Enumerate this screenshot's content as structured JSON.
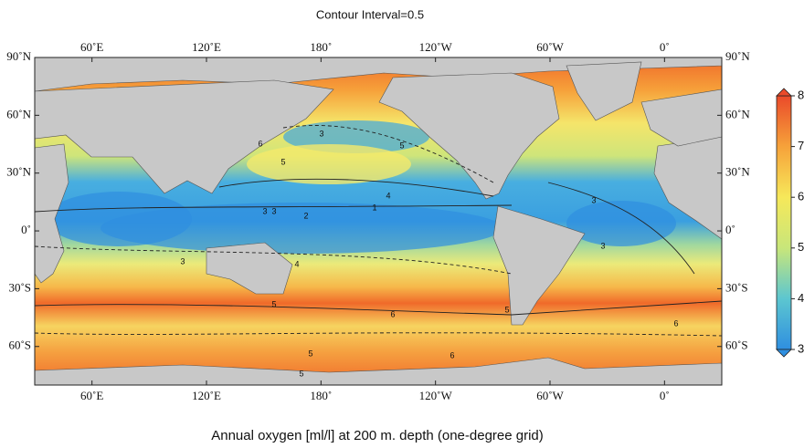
{
  "title": "Contour Interval=0.5",
  "caption": "Annual oxygen [ml/l] at 200 m. depth (one-degree grid)",
  "map": {
    "xlim": [
      30,
      390
    ],
    "ylim": [
      -80,
      90
    ],
    "lon_ticks": [
      {
        "value": 60,
        "label": "60˚E"
      },
      {
        "value": 120,
        "label": "120˚E"
      },
      {
        "value": 180,
        "label": "180˚"
      },
      {
        "value": 240,
        "label": "120˚W"
      },
      {
        "value": 300,
        "label": "60˚W"
      },
      {
        "value": 360,
        "label": "0˚"
      }
    ],
    "lat_ticks": [
      {
        "value": 90,
        "label": "90˚N"
      },
      {
        "value": 60,
        "label": "60˚N"
      },
      {
        "value": 30,
        "label": "30˚N"
      },
      {
        "value": 0,
        "label": "0˚"
      },
      {
        "value": -30,
        "label": "30˚S"
      },
      {
        "value": -60,
        "label": "60˚S"
      }
    ],
    "contour_labels": [
      3,
      5,
      6,
      3,
      5,
      4,
      3,
      2,
      1,
      3,
      3,
      4,
      5,
      6,
      5,
      6,
      5,
      6,
      5,
      3
    ]
  },
  "colorbar": {
    "lim": [
      3,
      8
    ],
    "ticks": [
      3,
      4,
      5,
      6,
      7,
      8
    ],
    "colors": [
      "#2f8fe0",
      "#5cc6d0",
      "#c8e67a",
      "#f6e85a",
      "#f6a23a",
      "#ea4a2a"
    ]
  }
}
